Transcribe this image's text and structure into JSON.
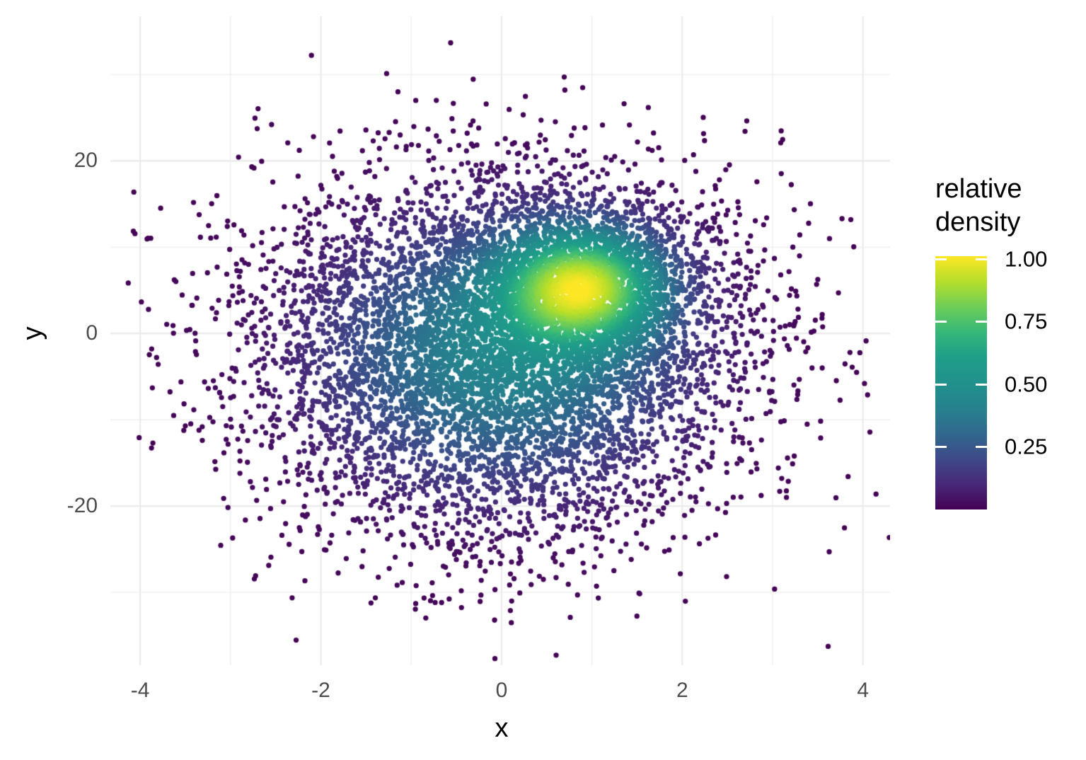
{
  "figure": {
    "background": "#ffffff"
  },
  "chart_data": {
    "type": "scatter",
    "subtype": "density-colored scatter (two overlapping gaussian clusters, points colored by relative local density, viridis)",
    "title": "",
    "xlabel": "x",
    "ylabel": "y",
    "xlim": [
      -4.33,
      4.3
    ],
    "ylim": [
      -38.44,
      36.75
    ],
    "x_major_ticks": [
      -4,
      -2,
      0,
      2,
      4
    ],
    "x_tick_labels": [
      "-4",
      "-2",
      "0",
      "2",
      "4"
    ],
    "x_minor_ticks": [
      -3,
      -1,
      1,
      3
    ],
    "y_major_ticks": [
      20,
      0,
      -20
    ],
    "y_tick_labels": [
      "20",
      "0",
      "-20"
    ],
    "y_minor_ticks": [
      30,
      10,
      -10,
      -30
    ],
    "grid": {
      "visible": true,
      "color": "#ebebeb",
      "major_width": 2.2,
      "minor_width": 1.1,
      "background": "#ffffff"
    },
    "legend": {
      "title_line1": "relative",
      "title_line2": "density",
      "tick_values": [
        1.0,
        0.75,
        0.5,
        0.25
      ],
      "tick_labels": [
        "1.00",
        "0.75",
        "0.50",
        "0.25"
      ],
      "colorbar_domain": [
        0,
        1
      ],
      "position": "right"
    },
    "colormap": {
      "name": "viridis",
      "stops": [
        [
          0.0,
          "#440154"
        ],
        [
          0.1,
          "#482878"
        ],
        [
          0.2,
          "#3e4a89"
        ],
        [
          0.3,
          "#31688e"
        ],
        [
          0.4,
          "#26828e"
        ],
        [
          0.5,
          "#21918c"
        ],
        [
          0.6,
          "#1f9e89"
        ],
        [
          0.7,
          "#35b779"
        ],
        [
          0.8,
          "#6ece58"
        ],
        [
          0.9,
          "#b5de2b"
        ],
        [
          1.0,
          "#fde725"
        ]
      ]
    },
    "points": {
      "n": 9000,
      "seed": 1337,
      "marker_radius_px": 3.65,
      "color_by": "relative density = mixture pdf / max pdf",
      "mixture_components": [
        {
          "weight": 0.75,
          "mean": [
            0.0,
            -2.5
          ],
          "sd": [
            1.35,
            10.5
          ]
        },
        {
          "weight": 0.25,
          "mean": [
            0.9,
            5.5
          ],
          "sd": [
            0.6,
            4.5
          ]
        }
      ],
      "density_peak_at": [
        0.9,
        5.5
      ]
    },
    "text_colors": {
      "tick_label": "#4d4d4d",
      "axis_title": "#000000",
      "legend_text": "#000000"
    }
  }
}
